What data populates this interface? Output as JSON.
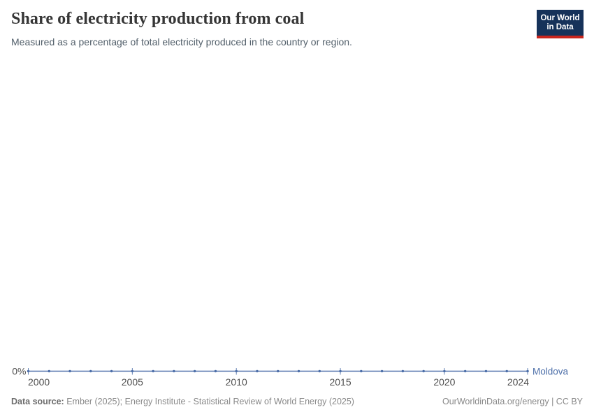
{
  "header": {
    "title": "Share of electricity production from coal",
    "subtitle": "Measured as a percentage of total electricity produced in the country or region."
  },
  "logo": {
    "line1": "Our World",
    "line2": "in Data",
    "bg_color": "#16325a",
    "accent_color": "#c9251d"
  },
  "footer": {
    "source_label": "Data source:",
    "source_text": "Ember (2025); Energy Institute - Statistical Review of World Energy (2025)",
    "right_text": "OurWorldinData.org/energy | CC BY"
  },
  "chart_data": {
    "type": "line",
    "title": "Share of electricity production from coal",
    "subtitle": "Measured as a percentage of total electricity produced in the country or region.",
    "x": [
      2000,
      2001,
      2002,
      2003,
      2004,
      2005,
      2006,
      2007,
      2008,
      2009,
      2010,
      2011,
      2012,
      2013,
      2014,
      2015,
      2016,
      2017,
      2018,
      2019,
      2020,
      2021,
      2022,
      2023,
      2024
    ],
    "series": [
      {
        "name": "Moldova",
        "color": "#4d6fa9",
        "values": [
          0,
          0,
          0,
          0,
          0,
          0,
          0,
          0,
          0,
          0,
          0,
          0,
          0,
          0,
          0,
          0,
          0,
          0,
          0,
          0,
          0,
          0,
          0,
          0,
          0
        ]
      }
    ],
    "x_ticks": [
      2000,
      2005,
      2010,
      2015,
      2020,
      2024
    ],
    "y_ticks": [
      "0%"
    ],
    "y_axis_unit": "%",
    "ylim": [
      0,
      0
    ],
    "grid": false,
    "legend": "end-of-line-label",
    "axis_label_color": "#4f4f4f"
  }
}
